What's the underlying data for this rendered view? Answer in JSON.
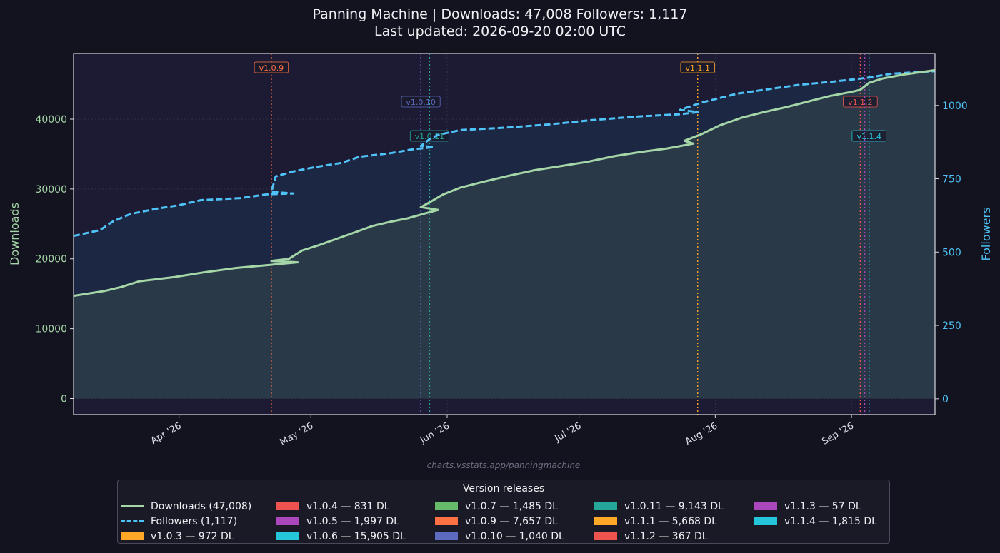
{
  "header": {
    "title_line1": "Panning Machine  |  Downloads: 47,008   Followers: 1,117",
    "title_line2": "Last updated: 2026-09-20 02:00 UTC"
  },
  "watermark": "charts.vsstats.app/panningmachine",
  "colors": {
    "downloads": "#a5d6a7",
    "followers": "#4fc3f7",
    "page_bg": "#13131f",
    "plot_bg": "#1d1a33"
  },
  "chart_data": {
    "type": "line",
    "x_axis": {
      "type": "date",
      "range": [
        "2026-03-08",
        "2026-09-20"
      ],
      "tick_labels": [
        "Apr '26",
        "May '26",
        "Jun '26",
        "Jul '26",
        "Aug '26",
        "Sep '26"
      ],
      "tick_dates": [
        "2026-04-01",
        "2026-05-01",
        "2026-06-01",
        "2026-07-01",
        "2026-08-01",
        "2026-09-01"
      ]
    },
    "y_left": {
      "label": "Downloads",
      "range": [
        -2300,
        49400
      ],
      "ticks": [
        0,
        10000,
        20000,
        30000,
        40000
      ],
      "tick_labels": [
        "0",
        "10000",
        "20000",
        "30000",
        "40000"
      ]
    },
    "y_right": {
      "label": "Followers",
      "range": [
        -54,
        1177
      ],
      "ticks": [
        0,
        250,
        500,
        750,
        1000
      ],
      "tick_labels": [
        "0",
        "250",
        "500",
        "750",
        "1000"
      ]
    },
    "grid": true,
    "series": [
      {
        "name": "Downloads (47,008)",
        "axis": "left",
        "style": "solid",
        "points": [
          [
            "2026-03-08",
            14700
          ],
          [
            "2026-03-15",
            15400
          ],
          [
            "2026-03-19",
            16000
          ],
          [
            "2026-03-23",
            16800
          ],
          [
            "2026-03-31",
            17400
          ],
          [
            "2026-04-07",
            18100
          ],
          [
            "2026-04-14",
            18700
          ],
          [
            "2026-04-21",
            19100
          ],
          [
            "2026-04-28",
            19500
          ],
          [
            "2026-04-22",
            19700
          ],
          [
            "2026-04-26",
            20000
          ],
          [
            "2026-04-29",
            21200
          ],
          [
            "2026-05-03",
            22000
          ],
          [
            "2026-05-07",
            22900
          ],
          [
            "2026-05-11",
            23800
          ],
          [
            "2026-05-15",
            24700
          ],
          [
            "2026-05-19",
            25300
          ],
          [
            "2026-05-23",
            25800
          ],
          [
            "2026-05-27",
            26500
          ],
          [
            "2026-05-30",
            27000
          ],
          [
            "2026-05-26",
            27400
          ],
          [
            "2026-05-28",
            28100
          ],
          [
            "2026-05-31",
            29200
          ],
          [
            "2026-06-04",
            30200
          ],
          [
            "2026-06-09",
            31000
          ],
          [
            "2026-06-15",
            31900
          ],
          [
            "2026-06-21",
            32700
          ],
          [
            "2026-06-27",
            33300
          ],
          [
            "2026-07-03",
            33900
          ],
          [
            "2026-07-09",
            34700
          ],
          [
            "2026-07-15",
            35300
          ],
          [
            "2026-07-21",
            35800
          ],
          [
            "2026-07-27",
            36500
          ],
          [
            "2026-07-25",
            36900
          ],
          [
            "2026-07-29",
            37900
          ],
          [
            "2026-08-02",
            39100
          ],
          [
            "2026-08-07",
            40200
          ],
          [
            "2026-08-12",
            41000
          ],
          [
            "2026-08-17",
            41700
          ],
          [
            "2026-08-22",
            42500
          ],
          [
            "2026-08-27",
            43300
          ],
          [
            "2026-09-01",
            43900
          ],
          [
            "2026-09-03",
            44200
          ],
          [
            "2026-09-05",
            45200
          ],
          [
            "2026-09-08",
            45800
          ],
          [
            "2026-09-13",
            46400
          ],
          [
            "2026-09-20",
            47008
          ]
        ]
      },
      {
        "name": "Followers (1,117)",
        "axis": "right",
        "style": "dashed",
        "points": [
          [
            "2026-03-08",
            555
          ],
          [
            "2026-03-14",
            575
          ],
          [
            "2026-03-17",
            605
          ],
          [
            "2026-03-21",
            630
          ],
          [
            "2026-03-27",
            648
          ],
          [
            "2026-04-01",
            660
          ],
          [
            "2026-04-06",
            677
          ],
          [
            "2026-04-15",
            684
          ],
          [
            "2026-04-21",
            697
          ],
          [
            "2026-04-27",
            700
          ],
          [
            "2026-04-22",
            705
          ],
          [
            "2026-04-23",
            758
          ],
          [
            "2026-04-27",
            775
          ],
          [
            "2026-05-02",
            790
          ],
          [
            "2026-05-08",
            804
          ],
          [
            "2026-05-12",
            825
          ],
          [
            "2026-05-19",
            837
          ],
          [
            "2026-05-24",
            850
          ],
          [
            "2026-05-29",
            858
          ],
          [
            "2026-05-26",
            862
          ],
          [
            "2026-05-28",
            885
          ],
          [
            "2026-05-30",
            900
          ],
          [
            "2026-06-04",
            916
          ],
          [
            "2026-06-14",
            924
          ],
          [
            "2026-06-24",
            935
          ],
          [
            "2026-07-04",
            950
          ],
          [
            "2026-07-14",
            962
          ],
          [
            "2026-07-24",
            970
          ],
          [
            "2026-07-28",
            977
          ],
          [
            "2026-07-24",
            985
          ],
          [
            "2026-07-29",
            1010
          ],
          [
            "2026-08-06",
            1040
          ],
          [
            "2026-08-13",
            1055
          ],
          [
            "2026-08-20",
            1070
          ],
          [
            "2026-08-27",
            1080
          ],
          [
            "2026-09-01",
            1088
          ],
          [
            "2026-09-05",
            1095
          ],
          [
            "2026-09-10",
            1108
          ],
          [
            "2026-09-20",
            1117
          ]
        ]
      }
    ],
    "releases": [
      {
        "label": "v1.0.9",
        "date": "2026-04-22",
        "color": "#ff7043"
      },
      {
        "label": "v1.0.10",
        "date": "2026-05-26",
        "color": "#5c6bc0"
      },
      {
        "label": "v1.0.11",
        "date": "2026-05-28",
        "color": "#26a69a"
      },
      {
        "label": "v1.1.1",
        "date": "2026-07-28",
        "color": "#ffa726"
      },
      {
        "label": "v1.1.2",
        "date": "2026-09-03",
        "color": "#ef5350"
      },
      {
        "label": "v1.1.4",
        "date": "2026-09-05",
        "color": "#26c6da"
      },
      {
        "label": "",
        "date": "2026-09-04",
        "color": "#ab47bc"
      }
    ],
    "legend": {
      "title": "Version releases",
      "placement": "bottom-center",
      "columns": [
        [
          {
            "kind": "line",
            "style": "solid",
            "color": "#a5d6a7",
            "label": "Downloads (47,008)"
          },
          {
            "kind": "line",
            "style": "dashed",
            "color": "#4fc3f7",
            "label": "Followers (1,117)"
          },
          {
            "kind": "patch",
            "color": "#ffa726",
            "label": "v1.0.3  —  972 DL"
          }
        ],
        [
          {
            "kind": "patch",
            "color": "#ef5350",
            "label": "v1.0.4  —  831 DL"
          },
          {
            "kind": "patch",
            "color": "#ab47bc",
            "label": "v1.0.5  —  1,997 DL"
          },
          {
            "kind": "patch",
            "color": "#26c6da",
            "label": "v1.0.6  —  15,905 DL"
          }
        ],
        [
          {
            "kind": "patch",
            "color": "#66bb6a",
            "label": "v1.0.7  —  1,485 DL"
          },
          {
            "kind": "patch",
            "color": "#ff7043",
            "label": "v1.0.9  —  7,657 DL"
          },
          {
            "kind": "patch",
            "color": "#5c6bc0",
            "label": "v1.0.10  —  1,040 DL"
          }
        ],
        [
          {
            "kind": "patch",
            "color": "#26a69a",
            "label": "v1.0.11  —  9,143 DL"
          },
          {
            "kind": "patch",
            "color": "#ffa726",
            "label": "v1.1.1  —  5,668 DL"
          },
          {
            "kind": "patch",
            "color": "#ef5350",
            "label": "v1.1.2  —  367 DL"
          }
        ],
        [
          {
            "kind": "patch",
            "color": "#ab47bc",
            "label": "v1.1.3  —  57 DL"
          },
          {
            "kind": "patch",
            "color": "#26c6da",
            "label": "v1.1.4  —  1,815 DL"
          }
        ]
      ]
    }
  }
}
